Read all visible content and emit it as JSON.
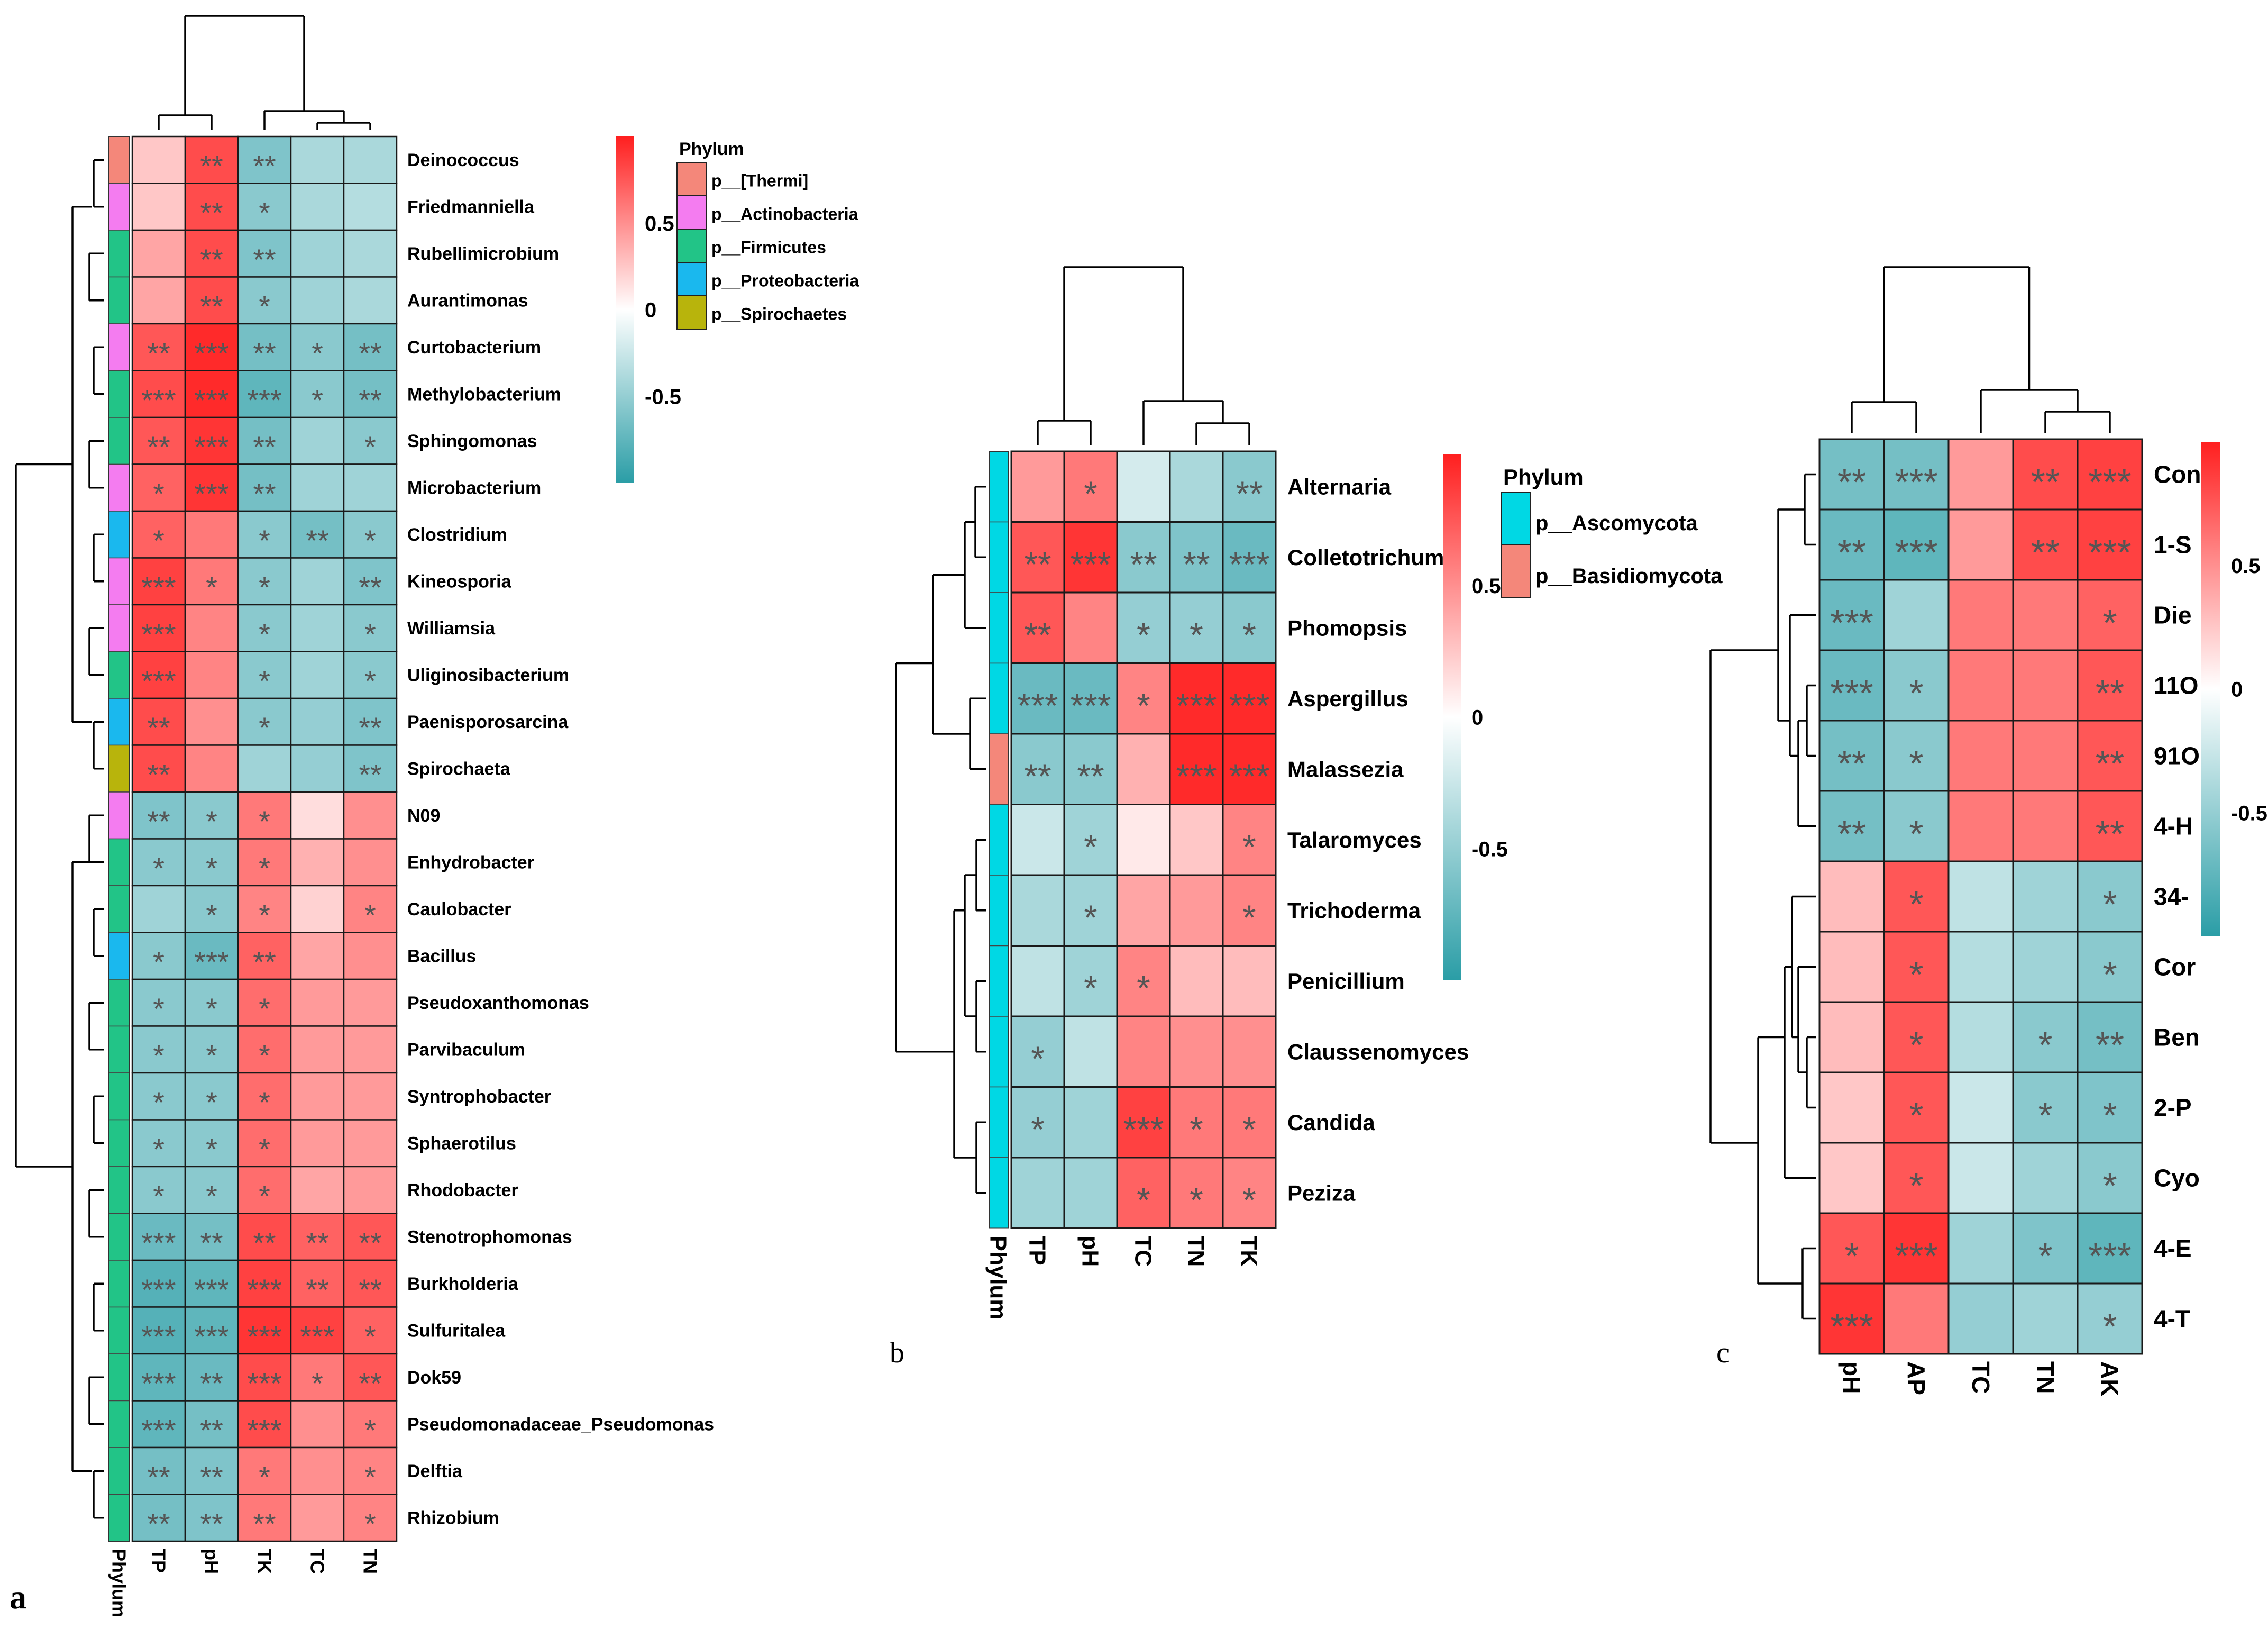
{
  "figure": {
    "panel_letters": [
      "a",
      "b",
      "c"
    ]
  },
  "colors": {
    "high": "#ff1f1f",
    "mid": "#ffffff",
    "low": "#2a9da6",
    "grid": "#1a1a1a",
    "text": "#000000",
    "stars": "#555555"
  },
  "chart_data": [
    {
      "type": "heatmap",
      "panel": "a",
      "rows": [
        "Deinococcus",
        "Friedmanniella",
        "Rubellimicrobium",
        "Aurantimonas",
        "Curtobacterium",
        "Methylobacterium",
        "Sphingomonas",
        "Microbacterium",
        "Clostridium",
        "Kineosporia",
        "Williamsia",
        "Uliginosibacterium",
        "Paenisporosarcina",
        "Spirochaeta",
        "N09",
        "Enhydrobacter",
        "Caulobacter",
        "Bacillus",
        "Pseudoxanthomonas",
        "Parvibaculum",
        "Syntrophobacter",
        "Sphaerotilus",
        "Rhodobacter",
        "Stenotrophomonas",
        "Burkholderia",
        "Sulfuritalea",
        "Dok59",
        "Pseudomonadaceae_Pseudomonas",
        "Delftia",
        "Rhizobium"
      ],
      "columns": [
        "TP",
        "pH",
        "TK",
        "TC",
        "TN"
      ],
      "phylum_axis_label": "Phylum",
      "values": [
        [
          0.25,
          0.8,
          -0.6,
          -0.4,
          -0.4
        ],
        [
          0.25,
          0.8,
          -0.55,
          -0.4,
          -0.35
        ],
        [
          0.4,
          0.8,
          -0.6,
          -0.45,
          -0.4
        ],
        [
          0.4,
          0.8,
          -0.55,
          -0.45,
          -0.4
        ],
        [
          0.75,
          0.95,
          -0.65,
          -0.55,
          -0.65
        ],
        [
          0.8,
          0.95,
          -0.75,
          -0.55,
          -0.65
        ],
        [
          0.75,
          0.9,
          -0.65,
          -0.45,
          -0.55
        ],
        [
          0.7,
          0.9,
          -0.65,
          -0.45,
          -0.45
        ],
        [
          0.7,
          0.6,
          -0.55,
          -0.65,
          -0.55
        ],
        [
          0.85,
          0.6,
          -0.55,
          -0.45,
          -0.6
        ],
        [
          0.85,
          0.55,
          -0.55,
          -0.45,
          -0.55
        ],
        [
          0.85,
          0.55,
          -0.55,
          -0.45,
          -0.55
        ],
        [
          0.8,
          0.5,
          -0.55,
          -0.5,
          -0.6
        ],
        [
          0.8,
          0.55,
          -0.45,
          -0.5,
          -0.6
        ],
        [
          -0.6,
          -0.55,
          0.6,
          0.15,
          0.5
        ],
        [
          -0.55,
          -0.55,
          0.6,
          0.35,
          0.5
        ],
        [
          -0.45,
          -0.55,
          0.55,
          0.2,
          0.55
        ],
        [
          -0.55,
          -0.7,
          0.7,
          0.4,
          0.5
        ],
        [
          -0.55,
          -0.55,
          0.65,
          0.45,
          0.45
        ],
        [
          -0.55,
          -0.55,
          0.65,
          0.45,
          0.45
        ],
        [
          -0.55,
          -0.55,
          0.65,
          0.45,
          0.45
        ],
        [
          -0.55,
          -0.55,
          0.65,
          0.45,
          0.45
        ],
        [
          -0.55,
          -0.55,
          0.65,
          0.4,
          0.45
        ],
        [
          -0.7,
          -0.65,
          0.8,
          0.7,
          0.75
        ],
        [
          -0.8,
          -0.75,
          0.85,
          0.7,
          0.75
        ],
        [
          -0.8,
          -0.75,
          0.9,
          0.85,
          0.7
        ],
        [
          -0.75,
          -0.7,
          0.8,
          0.6,
          0.75
        ],
        [
          -0.75,
          -0.65,
          0.8,
          0.5,
          0.6
        ],
        [
          -0.65,
          -0.6,
          0.6,
          0.5,
          0.55
        ],
        [
          -0.65,
          -0.6,
          0.6,
          0.45,
          0.55
        ]
      ],
      "stars": [
        [
          "",
          "**",
          "**",
          "",
          ""
        ],
        [
          "",
          "**",
          "*",
          "",
          ""
        ],
        [
          "",
          "**",
          "**",
          "",
          ""
        ],
        [
          "",
          "**",
          "*",
          "",
          ""
        ],
        [
          "**",
          "***",
          "**",
          "*",
          "**"
        ],
        [
          "***",
          "***",
          "***",
          "*",
          "**"
        ],
        [
          "**",
          "***",
          "**",
          "",
          "*"
        ],
        [
          "*",
          "***",
          "**",
          "",
          ""
        ],
        [
          "*",
          "",
          "*",
          "**",
          "*"
        ],
        [
          "***",
          "*",
          "*",
          "",
          "**"
        ],
        [
          "***",
          "",
          "*",
          "",
          "*"
        ],
        [
          "***",
          "",
          "*",
          "",
          "*"
        ],
        [
          "**",
          "",
          "*",
          "",
          "**"
        ],
        [
          "**",
          "",
          "",
          "",
          "**"
        ],
        [
          "**",
          "*",
          "*",
          "",
          ""
        ],
        [
          "*",
          "*",
          "*",
          "",
          ""
        ],
        [
          "",
          "*",
          "*",
          "",
          "*"
        ],
        [
          "*",
          "***",
          "**",
          "",
          ""
        ],
        [
          "*",
          "*",
          "*",
          "",
          ""
        ],
        [
          "*",
          "*",
          "*",
          "",
          ""
        ],
        [
          "*",
          "*",
          "*",
          "",
          ""
        ],
        [
          "*",
          "*",
          "*",
          "",
          ""
        ],
        [
          "*",
          "*",
          "*",
          "",
          ""
        ],
        [
          "***",
          "**",
          "**",
          "**",
          "**"
        ],
        [
          "***",
          "***",
          "***",
          "**",
          "**"
        ],
        [
          "***",
          "***",
          "***",
          "***",
          "*"
        ],
        [
          "***",
          "**",
          "***",
          "*",
          "**"
        ],
        [
          "***",
          "**",
          "***",
          "",
          "*"
        ],
        [
          "**",
          "**",
          "*",
          "",
          "*"
        ],
        [
          "**",
          "**",
          "**",
          "",
          "*"
        ]
      ],
      "row_phylum": [
        0,
        1,
        2,
        2,
        1,
        2,
        2,
        1,
        3,
        1,
        1,
        2,
        3,
        4,
        1,
        2,
        2,
        3,
        2,
        2,
        2,
        2,
        2,
        2,
        2,
        2,
        2,
        2,
        2,
        2
      ],
      "colorbar_ticks": [
        "0.5",
        "0",
        "-0.5"
      ],
      "colorbar_tick_values": [
        0.5,
        0,
        -0.5
      ],
      "legend_title": "Phylum",
      "legend_entries": [
        "p__[Thermi]",
        "p__Actinobacteria",
        "p__Firmicutes",
        "p__Proteobacteria",
        "p__Spirochaetes"
      ],
      "legend_colors": [
        "#f4877a",
        "#f47cf0",
        "#22c487",
        "#1ab8ee",
        "#b8b40c"
      ]
    },
    {
      "type": "heatmap",
      "panel": "b",
      "rows": [
        "Alternaria",
        "Colletotrichum",
        "Phomopsis",
        "Aspergillus",
        "Malassezia",
        "Talaromyces",
        "Trichoderma",
        "Penicillium",
        "Claussenomyces",
        "Candida",
        "Peziza"
      ],
      "columns": [
        "TP",
        "pH",
        "TC",
        "TN",
        "TK"
      ],
      "phylum_axis_label": "Phylum",
      "values": [
        [
          0.45,
          0.6,
          -0.2,
          -0.4,
          -0.55
        ],
        [
          0.75,
          0.9,
          -0.55,
          -0.6,
          -0.7
        ],
        [
          0.75,
          0.55,
          -0.5,
          -0.5,
          -0.55
        ],
        [
          -0.7,
          -0.7,
          0.55,
          0.95,
          0.95
        ],
        [
          -0.55,
          -0.55,
          0.35,
          0.95,
          0.95
        ],
        [
          -0.25,
          -0.45,
          0.1,
          0.25,
          0.55
        ],
        [
          -0.4,
          -0.45,
          0.4,
          0.45,
          0.55
        ],
        [
          -0.3,
          -0.45,
          0.55,
          0.3,
          0.3
        ],
        [
          -0.5,
          -0.3,
          0.55,
          0.5,
          0.5
        ],
        [
          -0.5,
          -0.45,
          0.85,
          0.6,
          0.6
        ],
        [
          -0.45,
          -0.45,
          0.7,
          0.6,
          0.55
        ]
      ],
      "stars": [
        [
          "",
          "*",
          "",
          "",
          "**"
        ],
        [
          "**",
          "***",
          "**",
          "**",
          "***"
        ],
        [
          "**",
          "",
          "*",
          "*",
          "*"
        ],
        [
          "***",
          "***",
          "*",
          "***",
          "***"
        ],
        [
          "**",
          "**",
          "",
          "***",
          "***"
        ],
        [
          "",
          "*",
          "",
          "",
          "*"
        ],
        [
          "",
          "*",
          "",
          "",
          "*"
        ],
        [
          "",
          "*",
          "*",
          "",
          ""
        ],
        [
          "*",
          "",
          "",
          "",
          ""
        ],
        [
          "*",
          "",
          "***",
          "*",
          "*"
        ],
        [
          "",
          "",
          "*",
          "*",
          "*"
        ]
      ],
      "row_phylum": [
        0,
        0,
        0,
        0,
        1,
        0,
        0,
        0,
        0,
        0,
        0
      ],
      "colorbar_ticks": [
        "0.5",
        "0",
        "-0.5"
      ],
      "colorbar_tick_values": [
        0.5,
        0,
        -0.5
      ],
      "legend_title": "Phylum",
      "legend_entries": [
        "p__Ascomycota",
        "p__Basidiomycota"
      ],
      "legend_colors": [
        "#00d8e4",
        "#f4877a"
      ]
    },
    {
      "type": "heatmap",
      "panel": "c",
      "rows": [
        "Con",
        "1-S",
        "Die",
        "11O",
        "91O",
        "4-H",
        "34-",
        "Cor",
        "Ben",
        "2-P",
        "Cyo",
        "4-E",
        "4-T"
      ],
      "columns": [
        "pH",
        "AP",
        "TC",
        "TN",
        "AK"
      ],
      "values": [
        [
          -0.65,
          -0.65,
          0.45,
          0.8,
          0.85
        ],
        [
          -0.7,
          -0.75,
          0.45,
          0.8,
          0.85
        ],
        [
          -0.7,
          -0.45,
          0.6,
          0.6,
          0.7
        ],
        [
          -0.7,
          -0.55,
          0.6,
          0.6,
          0.75
        ],
        [
          -0.65,
          -0.55,
          0.6,
          0.6,
          0.75
        ],
        [
          -0.65,
          -0.55,
          0.6,
          0.6,
          0.75
        ],
        [
          0.3,
          0.75,
          -0.3,
          -0.45,
          -0.55
        ],
        [
          0.3,
          0.75,
          -0.35,
          -0.45,
          -0.55
        ],
        [
          0.3,
          0.75,
          -0.35,
          -0.55,
          -0.65
        ],
        [
          0.25,
          0.75,
          -0.25,
          -0.55,
          -0.6
        ],
        [
          0.25,
          0.75,
          -0.25,
          -0.45,
          -0.55
        ],
        [
          0.75,
          0.9,
          -0.45,
          -0.6,
          -0.75
        ],
        [
          0.9,
          0.6,
          -0.5,
          -0.45,
          -0.5
        ]
      ],
      "stars": [
        [
          "**",
          "***",
          "",
          "**",
          "***"
        ],
        [
          "**",
          "***",
          "",
          "**",
          "***"
        ],
        [
          "***",
          "",
          "",
          "",
          "*"
        ],
        [
          "***",
          "*",
          "",
          "",
          "**"
        ],
        [
          "**",
          "*",
          "",
          "",
          "**"
        ],
        [
          "**",
          "*",
          "",
          "",
          "**"
        ],
        [
          "",
          "*",
          "",
          "",
          "*"
        ],
        [
          "",
          "*",
          "",
          "",
          "*"
        ],
        [
          "",
          "*",
          "",
          "*",
          "**"
        ],
        [
          "",
          "*",
          "",
          "*",
          "*"
        ],
        [
          "",
          "*",
          "",
          "",
          "*"
        ],
        [
          "*",
          "***",
          "",
          "*",
          "***"
        ],
        [
          "***",
          "",
          "",
          "",
          "*"
        ]
      ],
      "colorbar_ticks": [
        "0.5",
        "0",
        "-0.5"
      ],
      "colorbar_tick_values": [
        0.5,
        0,
        -0.5
      ]
    }
  ]
}
